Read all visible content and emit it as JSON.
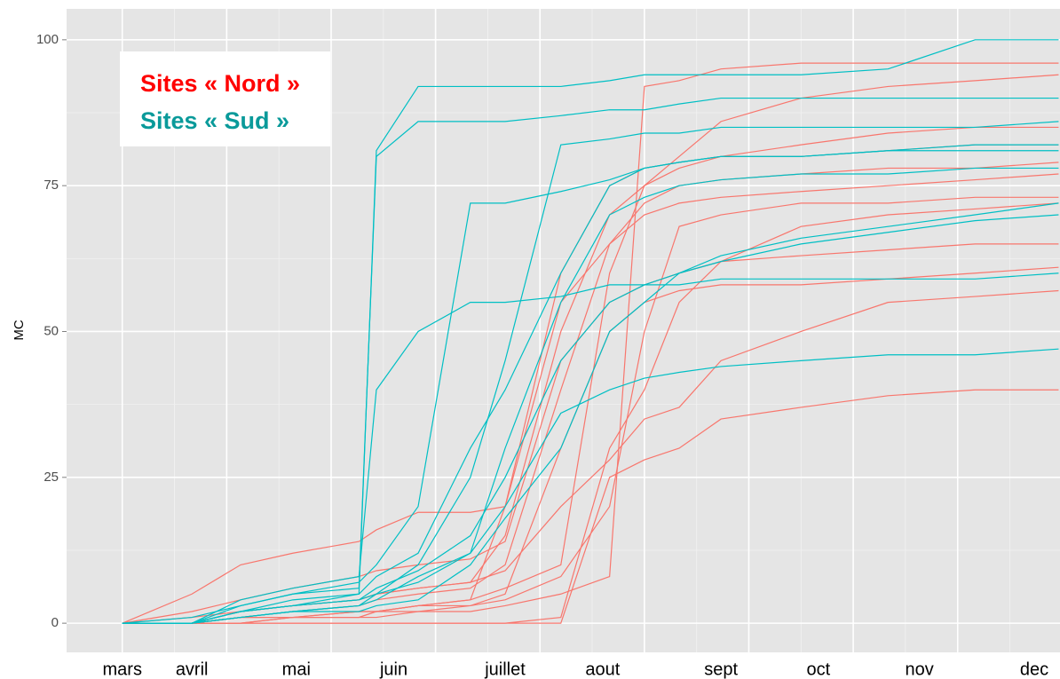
{
  "chart_data": {
    "type": "line",
    "y_label": "MC",
    "xlim": [
      -16,
      269.4
    ],
    "ylim": [
      -5,
      105.3
    ],
    "xticks": [
      {
        "value": 0,
        "label": "mars"
      },
      {
        "value": 20,
        "label": "avril"
      },
      {
        "value": 50,
        "label": "mai"
      },
      {
        "value": 78,
        "label": "juin"
      },
      {
        "value": 110,
        "label": "juillet"
      },
      {
        "value": 138,
        "label": "aout"
      },
      {
        "value": 172,
        "label": "sept"
      },
      {
        "value": 200,
        "label": "oct"
      },
      {
        "value": 229,
        "label": "nov"
      },
      {
        "value": 262,
        "label": "dec"
      }
    ],
    "xgrid": [
      0,
      30,
      60,
      90,
      120,
      150,
      180,
      210,
      240
    ],
    "xgrid_minor": [
      15,
      45,
      75,
      105,
      135,
      165,
      195,
      225,
      255
    ],
    "yticks": [
      0,
      25,
      50,
      75,
      100
    ],
    "ygrid_minor": [
      12.5,
      37.5,
      62.5,
      87.5
    ],
    "grid": true,
    "legend": [
      {
        "label": "Sites « Nord »",
        "color": "#ff0000"
      },
      {
        "label": "Sites « Sud »",
        "color": "#0a9a9a"
      }
    ],
    "x": [
      0,
      20,
      34,
      49,
      68,
      73,
      85,
      100,
      110,
      126,
      140,
      150,
      160,
      172,
      195,
      220,
      245,
      269
    ],
    "series": [
      {
        "color": "#f8766d",
        "values": [
          0,
          0,
          0,
          0,
          0,
          0,
          0,
          0,
          0,
          1,
          30,
          40,
          55,
          62,
          68,
          70,
          71,
          72
        ]
      },
      {
        "color": "#f8766d",
        "values": [
          0,
          5,
          10,
          12,
          14,
          16,
          19,
          19,
          20,
          60,
          75,
          78,
          79,
          80,
          80,
          81,
          82,
          82
        ]
      },
      {
        "color": "#f8766d",
        "values": [
          0,
          0,
          1,
          2,
          3,
          4,
          5,
          6,
          10,
          40,
          65,
          72,
          75,
          76,
          77,
          78,
          78,
          79
        ]
      },
      {
        "color": "#f8766d",
        "values": [
          0,
          0,
          0,
          1,
          1,
          2,
          2,
          3,
          5,
          30,
          50,
          55,
          57,
          58,
          58,
          59,
          60,
          61
        ]
      },
      {
        "color": "#f8766d",
        "values": [
          0,
          0,
          2,
          3,
          4,
          5,
          6,
          7,
          9,
          20,
          28,
          35,
          37,
          45,
          50,
          55,
          56,
          57
        ]
      },
      {
        "color": "#f8766d",
        "values": [
          0,
          0,
          0,
          0,
          0,
          0,
          0,
          0,
          0,
          0,
          25,
          28,
          30,
          35,
          37,
          39,
          40,
          40
        ]
      },
      {
        "color": "#f8766d",
        "values": [
          0,
          1,
          2,
          3,
          4,
          5,
          6,
          7,
          15,
          50,
          70,
          75,
          78,
          80,
          82,
          84,
          85,
          85
        ]
      },
      {
        "color": "#f8766d",
        "values": [
          0,
          0,
          1,
          1,
          2,
          2,
          3,
          4,
          6,
          10,
          60,
          75,
          80,
          86,
          90,
          92,
          93,
          94
        ]
      },
      {
        "color": "#f8766d",
        "values": [
          0,
          0,
          1,
          1,
          1,
          2,
          3,
          3,
          4,
          8,
          20,
          50,
          68,
          70,
          72,
          72,
          73,
          73
        ]
      },
      {
        "color": "#f8766d",
        "values": [
          0,
          0,
          0,
          1,
          1,
          1,
          2,
          2,
          3,
          5,
          8,
          92,
          93,
          95,
          96,
          96,
          96,
          96
        ]
      },
      {
        "color": "#f8766d",
        "values": [
          0,
          2,
          4,
          6,
          8,
          9,
          10,
          11,
          14,
          45,
          55,
          58,
          60,
          62,
          63,
          64,
          65,
          65
        ]
      },
      {
        "color": "#f8766d",
        "values": [
          0,
          0,
          1,
          1,
          2,
          2,
          3,
          4,
          20,
          55,
          65,
          70,
          72,
          73,
          74,
          75,
          76,
          77
        ]
      },
      {
        "color": "#00bfc4",
        "values": [
          0,
          0,
          2,
          3,
          5,
          81,
          92,
          92,
          92,
          92,
          93,
          94,
          94,
          94,
          94,
          95,
          100,
          100
        ]
      },
      {
        "color": "#00bfc4",
        "values": [
          0,
          0,
          3,
          5,
          6,
          80,
          86,
          86,
          86,
          87,
          88,
          88,
          89,
          90,
          90,
          90,
          90,
          90
        ]
      },
      {
        "color": "#00bfc4",
        "values": [
          0,
          0,
          4,
          6,
          8,
          40,
          50,
          55,
          55,
          56,
          58,
          58,
          58,
          59,
          59,
          59,
          59,
          60
        ]
      },
      {
        "color": "#00bfc4",
        "values": [
          0,
          1,
          3,
          5,
          7,
          10,
          20,
          72,
          72,
          74,
          76,
          78,
          79,
          80,
          80,
          81,
          82,
          82
        ]
      },
      {
        "color": "#00bfc4",
        "values": [
          0,
          0,
          1,
          2,
          3,
          5,
          10,
          25,
          45,
          82,
          83,
          84,
          84,
          85,
          85,
          85,
          85,
          86
        ]
      },
      {
        "color": "#00bfc4",
        "values": [
          0,
          0,
          2,
          4,
          5,
          8,
          12,
          30,
          40,
          60,
          75,
          78,
          79,
          80,
          80,
          81,
          81,
          81
        ]
      },
      {
        "color": "#00bfc4",
        "values": [
          0,
          0,
          1,
          2,
          3,
          4,
          8,
          12,
          20,
          36,
          40,
          42,
          43,
          44,
          45,
          46,
          46,
          47
        ]
      },
      {
        "color": "#00bfc4",
        "values": [
          0,
          0,
          2,
          3,
          4,
          6,
          9,
          15,
          25,
          45,
          55,
          58,
          60,
          62,
          65,
          67,
          69,
          70
        ]
      },
      {
        "color": "#00bfc4",
        "values": [
          0,
          0,
          1,
          2,
          2,
          3,
          4,
          10,
          18,
          30,
          50,
          55,
          60,
          63,
          66,
          68,
          70,
          72
        ]
      },
      {
        "color": "#00bfc4",
        "values": [
          0,
          0,
          2,
          3,
          4,
          5,
          7,
          12,
          30,
          55,
          70,
          73,
          75,
          76,
          77,
          77,
          78,
          78
        ]
      }
    ]
  }
}
